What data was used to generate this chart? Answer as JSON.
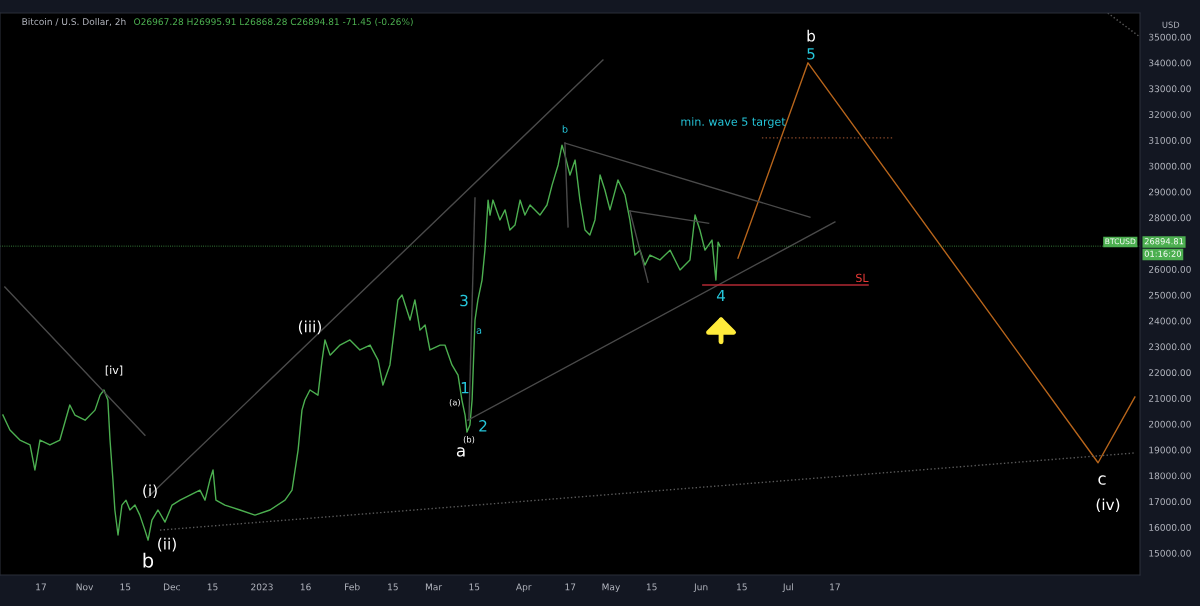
{
  "chart_data": {
    "type": "line",
    "title": "Bitcoin / U.S. Dollar, 2h",
    "subtitle": "O26967.28 H26995.91 L26868.28 C26894.81 -71.45 (-0.26%)",
    "ylabel": "USD",
    "xlim": [
      "2022-10-02T22:00",
      "2023-10-29T22:00"
    ],
    "ylim": [
      14150,
      35930
    ],
    "xticks": [
      {
        "value": "2022-10-17",
        "label": "17"
      },
      {
        "value": "2022-11-01",
        "label": "Nov"
      },
      {
        "value": "2022-11-15",
        "label": "15"
      },
      {
        "value": "2022-12-01",
        "label": "Dec"
      },
      {
        "value": "2022-12-15",
        "label": "15"
      },
      {
        "value": "2023-01-01",
        "label": "2023"
      },
      {
        "value": "2023-01-16",
        "label": "16"
      },
      {
        "value": "2023-02-01",
        "label": "Feb"
      },
      {
        "value": "2023-02-15",
        "label": "15"
      },
      {
        "value": "2023-03-01",
        "label": "Mar"
      },
      {
        "value": "2023-03-15",
        "label": "15"
      },
      {
        "value": "2023-04-01",
        "label": "Apr"
      },
      {
        "value": "2023-04-17",
        "label": "17"
      },
      {
        "value": "2023-05-01",
        "label": "May"
      },
      {
        "value": "2023-05-15",
        "label": "15"
      },
      {
        "value": "2023-06-01",
        "label": "Jun"
      },
      {
        "value": "2023-06-15",
        "label": "15"
      },
      {
        "value": "2023-07-01",
        "label": "Jul"
      },
      {
        "value": "2023-07-17",
        "label": "17"
      }
    ],
    "yticks": [
      {
        "value": 15000,
        "label": "15000.00"
      },
      {
        "value": 16000,
        "label": "16000.00"
      },
      {
        "value": 17000,
        "label": "17000.00"
      },
      {
        "value": 18000,
        "label": "18000.00"
      },
      {
        "value": 19000,
        "label": "19000.00"
      },
      {
        "value": 20000,
        "label": "20000.00"
      },
      {
        "value": 21000,
        "label": "21000.00"
      },
      {
        "value": 22000,
        "label": "22000.00"
      },
      {
        "value": 23000,
        "label": "23000.00"
      },
      {
        "value": 24000,
        "label": "24000.00"
      },
      {
        "value": 25000,
        "label": "25000.00"
      },
      {
        "value": 26000,
        "label": "26000.00"
      },
      {
        "value": 28000,
        "label": "28000.00"
      },
      {
        "value": 29000,
        "label": "29000.00"
      },
      {
        "value": 30000,
        "label": "30000.00"
      },
      {
        "value": 31000,
        "label": "31000.00"
      },
      {
        "value": 32000,
        "label": "32000.00"
      },
      {
        "value": 33000,
        "label": "33000.00"
      },
      {
        "value": 34000,
        "label": "34000.00"
      },
      {
        "value": 35000,
        "label": "35000.00"
      }
    ],
    "grid": false,
    "series": [
      {
        "color": "#4caf50",
        "x": [
          "2022-10-03T22:00",
          "2022-10-06T08:00",
          "2022-10-09T18:00",
          "2022-10-13T06:00",
          "2022-10-14T22:00",
          "2022-10-16T16:00",
          "2022-10-20T02:00",
          "2022-10-23T12:00",
          "2022-10-26T22:00",
          "2022-10-28T16:00",
          "2022-11-01T04:00",
          "2022-11-04T14:00",
          "2022-11-06T08:00",
          "2022-11-07T16:00",
          "2022-11-09T00:00",
          "2022-11-09T18:00",
          "2022-11-10T18:00",
          "2022-11-11T10:00",
          "2022-11-12T12:00",
          "2022-11-13T20:00",
          "2022-11-15T06:00",
          "2022-11-16T14:00",
          "2022-11-18T08:00",
          "2022-11-20T00:00",
          "2022-11-21T18:00",
          "2022-11-22T20:00",
          "2022-11-24T04:00",
          "2022-11-26T06:00",
          "2022-11-28T16:00",
          "2022-12-01T02:00",
          "2022-12-03T20:00",
          "2022-12-07T06:00",
          "2022-12-10T16:00",
          "2022-12-12T10:00",
          "2022-12-14T02:00",
          "2022-12-15T04:00",
          "2022-12-16T04:00",
          "2022-12-19T06:00",
          "2022-12-24T10:00",
          "2022-12-29T14:00",
          "2023-01-03T18:00",
          "2023-01-08T22:00",
          "2023-01-11T08:00",
          "2023-01-13T10:00",
          "2023-01-14T18:00",
          "2023-01-15T18:00",
          "2023-01-17T12:00",
          "2023-01-20T06:00",
          "2023-01-21T16:00",
          "2023-01-22T16:00",
          "2023-01-24T10:00",
          "2023-01-27T20:00",
          "2023-01-31T06:00",
          "2023-02-03T16:00",
          "2023-02-07T04:00",
          "2023-02-09T22:00",
          "2023-02-11T14:00",
          "2023-02-14T00:00",
          "2023-02-16T18:00",
          "2023-02-18T04:00",
          "2023-02-20T22:00",
          "2023-02-22T14:00",
          "2023-02-24T08:00",
          "2023-02-26T02:00",
          "2023-02-27T18:00",
          "2023-03-03T06:00",
          "2023-03-04T22:00",
          "2023-03-07T08:00",
          "2023-03-09T10:00",
          "2023-03-10T18:00",
          "2023-03-11T20:00",
          "2023-03-12T12:00",
          "2023-03-13T12:00",
          "2023-03-14T06:00",
          "2023-03-15T06:00",
          "2023-03-16T06:00",
          "2023-03-17T16:00",
          "2023-03-18T16:00",
          "2023-03-19T18:00",
          "2023-03-20T10:00",
          "2023-03-21T10:00",
          "2023-03-23T20:00",
          "2023-03-25T14:00",
          "2023-03-27T06:00",
          "2023-03-29T00:00",
          "2023-03-30T18:00",
          "2023-04-01T10:00",
          "2023-04-03T04:00",
          "2023-04-06T14:00",
          "2023-04-09T00:00",
          "2023-04-10T18:00",
          "2023-04-12T20:00",
          "2023-04-14T04:00",
          "2023-04-15T04:00",
          "2023-04-16T22:00",
          "2023-04-18T16:00",
          "2023-04-20T08:00",
          "2023-04-22T02:00",
          "2023-04-23T18:00",
          "2023-04-25T12:00",
          "2023-04-27T06:00",
          "2023-04-28T22:00",
          "2023-04-30T16:00",
          "2023-05-03T10:00",
          "2023-05-05T20:00",
          "2023-05-07T12:00",
          "2023-05-09T06:00",
          "2023-05-11T00:00",
          "2023-05-12T16:00",
          "2023-05-14T10:00",
          "2023-05-17T20:00",
          "2023-05-21T08:00",
          "2023-05-24T18:00",
          "2023-05-28T04:00",
          "2023-05-29T22:00",
          "2023-05-31T14:00",
          "2023-06-02T08:00",
          "2023-06-04T18:00",
          "2023-06-06T02:00",
          "2023-06-06T20:00",
          "2023-06-07T12:00"
        ],
        "values": [
          20350,
          19770,
          19380,
          19190,
          18220,
          19380,
          19190,
          19380,
          20740,
          20350,
          20150,
          20540,
          21120,
          21320,
          20930,
          19380,
          17830,
          16670,
          15700,
          16860,
          17050,
          16670,
          16860,
          16470,
          15890,
          15500,
          16280,
          16670,
          16200,
          16860,
          17050,
          17250,
          17440,
          17050,
          17830,
          18220,
          17050,
          16860,
          16670,
          16470,
          16670,
          17050,
          17440,
          18990,
          20540,
          20930,
          21320,
          21120,
          22480,
          23260,
          22670,
          23060,
          23260,
          22870,
          23060,
          22480,
          21510,
          22290,
          24810,
          25000,
          24030,
          24810,
          23640,
          23840,
          22870,
          23060,
          23060,
          22290,
          21900,
          20930,
          20350,
          19690,
          19960,
          20930,
          24030,
          24810,
          25580,
          26740,
          28680,
          28100,
          28680,
          27910,
          28300,
          27520,
          27710,
          28680,
          28100,
          28490,
          28100,
          28490,
          29260,
          30040,
          30810,
          30430,
          29650,
          30230,
          28680,
          27520,
          27330,
          27910,
          29650,
          29070,
          28300,
          29460,
          28880,
          27910,
          26550,
          26740,
          26160,
          26550,
          26360,
          26740,
          25970,
          26360,
          28100,
          27520,
          26740,
          27130,
          25580,
          27050,
          26890
        ]
      },
      {
        "color": "#b8651b",
        "x": [
          "2023-06-13T16:00",
          "2023-07-07T18:00",
          "2023-10-15T12:00",
          "2023-10-28T04:00"
        ],
        "values": [
          26430,
          34000,
          18500,
          21050
        ]
      },
      {
        "color": "#4a4a4a",
        "x": [
          "2022-11-22T20:00",
          "2023-04-28T06:00"
        ],
        "values": [
          17170,
          34110
        ]
      },
      {
        "color": "#4a4a4a",
        "x": [
          "2022-10-04T14:00",
          "2022-11-21T18:00"
        ],
        "values": [
          25310,
          19570
        ]
      },
      {
        "color": "#4a4a4a",
        "x": [
          "2023-03-12T20:00",
          "2023-07-17T00:00"
        ],
        "values": [
          20150,
          27830
        ]
      },
      {
        "color": "#4a4a4a",
        "x": [
          "2023-04-15T04:00",
          "2023-07-08T10:00"
        ],
        "values": [
          30890,
          28020
        ]
      },
      {
        "color": "#4a4a4a",
        "x": [
          "2023-05-07T12:00",
          "2023-06-03T14:00"
        ],
        "values": [
          28260,
          27780
        ]
      },
      {
        "color": "#4a4a4a",
        "x": [
          "2023-04-15T04:00",
          "2023-04-16T06:00"
        ],
        "values": [
          30890,
          27640
        ]
      },
      {
        "color": "#4a4a4a",
        "x": [
          "2023-05-07T12:00",
          "2023-05-13T18:00"
        ],
        "values": [
          28260,
          25500
        ]
      },
      {
        "color": "#4a4a4a",
        "x": [
          "2023-03-15T06:00",
          "2023-03-13T04:00"
        ],
        "values": [
          28760,
          20150
        ]
      },
      {
        "color": "#5a5a5a",
        "line_style": "dotted",
        "x": [
          "2022-11-26T22:00",
          "2023-10-28T04:00"
        ],
        "values": [
          15890,
          18880
        ]
      },
      {
        "color": "#5a5a5a",
        "line_style": "dotted",
        "x": [
          "2023-10-18T20:00",
          "2023-10-29T22:00"
        ],
        "values": [
          35930,
          35000
        ]
      },
      {
        "color": "#b22833",
        "x": [
          "2023-06-01T14:00",
          "2023-07-28T10:00"
        ],
        "values": [
          25390,
          25390
        ]
      },
      {
        "color": "#8a4a2b",
        "line_style": "dotted",
        "x": [
          "2023-06-21T22:00",
          "2023-08-06T00:00"
        ],
        "values": [
          31090,
          31090
        ]
      }
    ],
    "ref_lines": [
      {
        "axis": "y",
        "value": 26894.81,
        "label": "26894.81",
        "color": "#4caf50",
        "line_style": "dotted"
      }
    ],
    "annotations": [
      "[iv]",
      "(i)",
      "(ii)",
      "b",
      "(iii)",
      "a",
      "(a)",
      "(b)",
      "1",
      "2",
      "3",
      "a",
      "b",
      "4",
      "5",
      "b",
      "c",
      "(iv)",
      "SL",
      "min. wave 5 target",
      "BTCUSD",
      "01:16:20"
    ]
  }
}
